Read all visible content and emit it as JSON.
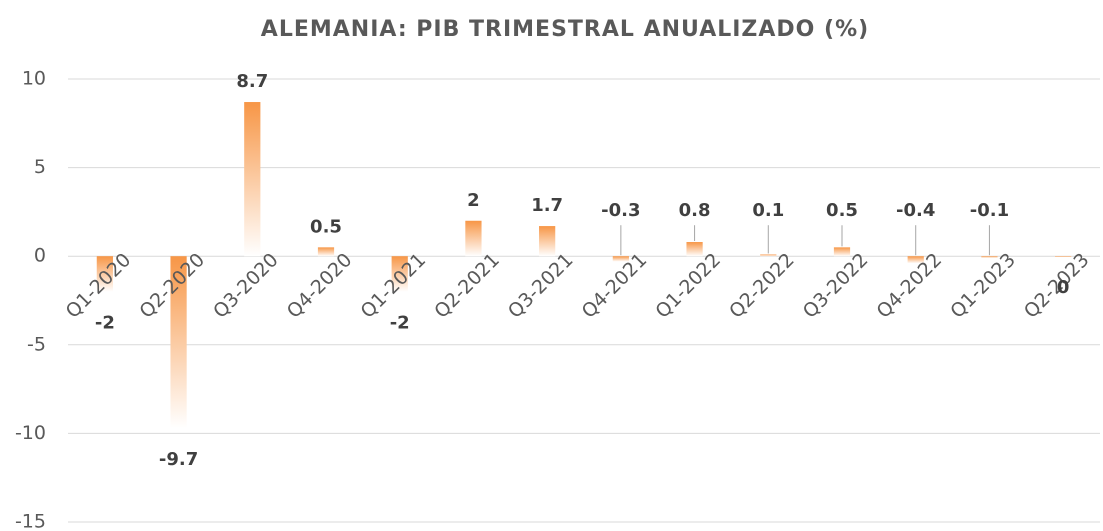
{
  "chart_data": {
    "type": "bar",
    "title": "ALEMANIA: PIB TRIMESTRAL ANUALIZADO (%)",
    "categories": [
      "Q1-2020",
      "Q2-2020",
      "Q3-2020",
      "Q4-2020",
      "Q1-2021",
      "Q2-2021",
      "Q3-2021",
      "Q4-2021",
      "Q1-2022",
      "Q2-2022",
      "Q3-2022",
      "Q4-2022",
      "Q1-2023",
      "Q2-2023"
    ],
    "values": [
      -2,
      -9.7,
      8.7,
      0.5,
      -2,
      2,
      1.7,
      -0.3,
      0.8,
      0.1,
      0.5,
      -0.4,
      -0.1,
      0
    ],
    "color": "#f79646",
    "ylim": [
      -15,
      10
    ],
    "yticks": [
      -15,
      -10,
      -5,
      0,
      5,
      10
    ],
    "grid": true
  }
}
